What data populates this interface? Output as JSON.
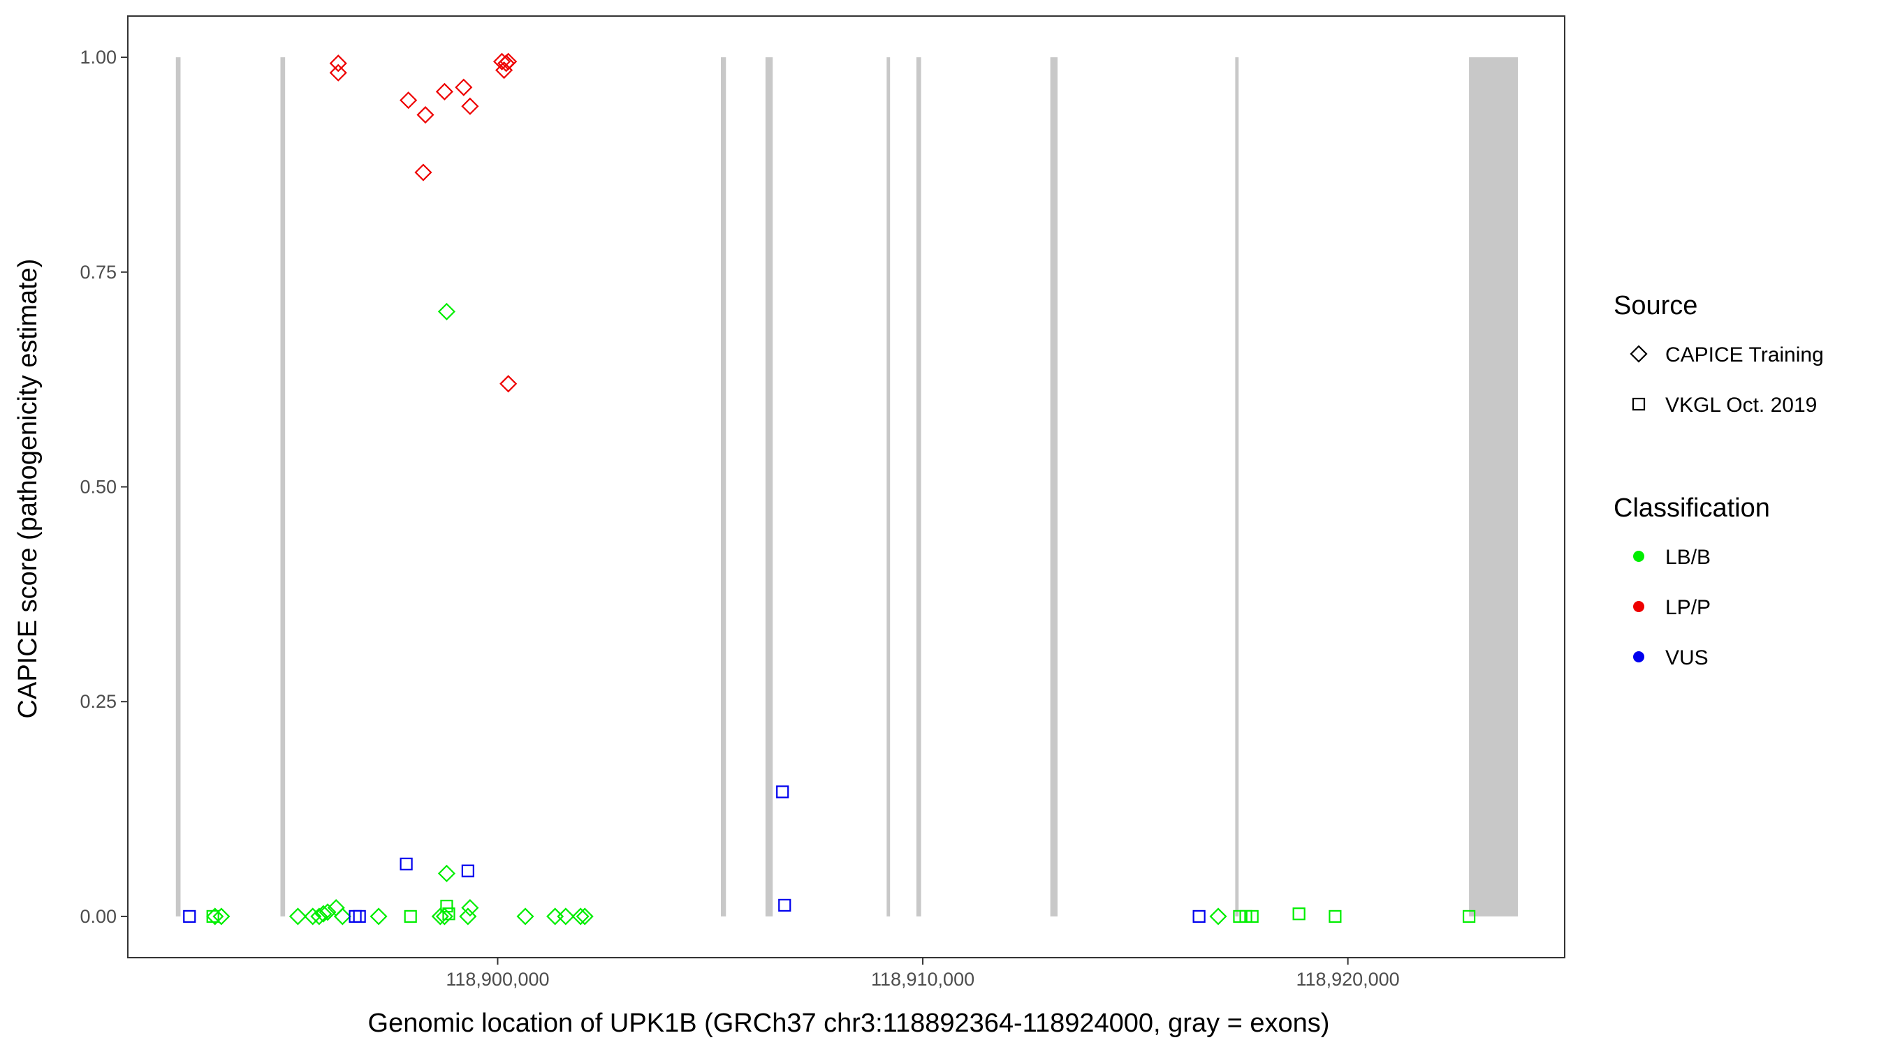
{
  "chart_data": {
    "type": "scatter",
    "title": "",
    "xlabel": "Genomic location of UPK1B (GRCh37 chr3:118892364-118924000, gray = exons)",
    "ylabel": "CAPICE score (pathogenicity estimate)",
    "xlim": [
      118891300,
      118925100
    ],
    "ylim": [
      -0.048,
      1.048
    ],
    "x_ticks": [
      118900000,
      118910000,
      118920000
    ],
    "x_tick_labels": [
      "118,900,000",
      "118,910,000",
      "118,920,000"
    ],
    "y_ticks": [
      0,
      0.25,
      0.5,
      0.75,
      1
    ],
    "y_tick_labels": [
      "0.00",
      "0.25",
      "0.50",
      "0.75",
      "1.00"
    ],
    "grid": false,
    "colors": {
      "LB/B": "#00ee00",
      "LP/P": "#ee0000",
      "VUS": "#0000ee",
      "exon": "#c8c8c8"
    },
    "exons": [
      [
        118892430,
        118892540
      ],
      [
        118894890,
        118895000
      ],
      [
        118905250,
        118905370
      ],
      [
        118906300,
        118906470
      ],
      [
        118909150,
        118909230
      ],
      [
        118909850,
        118909960
      ],
      [
        118913000,
        118913170
      ],
      [
        118917350,
        118917430
      ],
      [
        118922850,
        118924000
      ]
    ],
    "legend": [
      {
        "title": "Source",
        "items": [
          {
            "label": "CAPICE Training",
            "shape": "diamond"
          },
          {
            "label": "VKGL Oct. 2019",
            "shape": "square"
          }
        ]
      },
      {
        "title": "Classification",
        "items": [
          {
            "label": "LB/B",
            "color": "#00ee00"
          },
          {
            "label": "LP/P",
            "color": "#ee0000"
          },
          {
            "label": "VUS",
            "color": "#0000ee"
          }
        ]
      }
    ],
    "legend_position": "right",
    "points": [
      {
        "x": 118892750,
        "y": 0.0,
        "source": "VKGL Oct. 2019",
        "class": "VUS"
      },
      {
        "x": 118893300,
        "y": 0.0,
        "source": "VKGL Oct. 2019",
        "class": "LB/B"
      },
      {
        "x": 118893350,
        "y": 0.0,
        "source": "CAPICE Training",
        "class": "LB/B"
      },
      {
        "x": 118893500,
        "y": 0.0,
        "source": "CAPICE Training",
        "class": "LB/B"
      },
      {
        "x": 118895300,
        "y": 0.0,
        "source": "CAPICE Training",
        "class": "LB/B"
      },
      {
        "x": 118895650,
        "y": 0.0,
        "source": "CAPICE Training",
        "class": "LB/B"
      },
      {
        "x": 118895800,
        "y": 0.0,
        "source": "CAPICE Training",
        "class": "LB/B"
      },
      {
        "x": 118895900,
        "y": 0.003,
        "source": "CAPICE Training",
        "class": "LB/B"
      },
      {
        "x": 118896000,
        "y": 0.005,
        "source": "CAPICE Training",
        "class": "LB/B"
      },
      {
        "x": 118896200,
        "y": 0.01,
        "source": "CAPICE Training",
        "class": "LB/B"
      },
      {
        "x": 118896350,
        "y": 0.0,
        "source": "CAPICE Training",
        "class": "LB/B"
      },
      {
        "x": 118896650,
        "y": 0.0,
        "source": "VKGL Oct. 2019",
        "class": "VUS"
      },
      {
        "x": 118896750,
        "y": 0.0,
        "source": "VKGL Oct. 2019",
        "class": "VUS"
      },
      {
        "x": 118897200,
        "y": 0.0,
        "source": "CAPICE Training",
        "class": "LB/B"
      },
      {
        "x": 118897950,
        "y": 0.0,
        "source": "VKGL Oct. 2019",
        "class": "LB/B"
      },
      {
        "x": 118898650,
        "y": 0.0,
        "source": "CAPICE Training",
        "class": "LB/B"
      },
      {
        "x": 118898750,
        "y": 0.0,
        "source": "CAPICE Training",
        "class": "LB/B"
      },
      {
        "x": 118898800,
        "y": 0.012,
        "source": "VKGL Oct. 2019",
        "class": "LB/B"
      },
      {
        "x": 118898850,
        "y": 0.003,
        "source": "VKGL Oct. 2019",
        "class": "LB/B"
      },
      {
        "x": 118899300,
        "y": 0.0,
        "source": "CAPICE Training",
        "class": "LB/B"
      },
      {
        "x": 118899350,
        "y": 0.01,
        "source": "CAPICE Training",
        "class": "LB/B"
      },
      {
        "x": 118900650,
        "y": 0.0,
        "source": "CAPICE Training",
        "class": "LB/B"
      },
      {
        "x": 118901350,
        "y": 0.0,
        "source": "CAPICE Training",
        "class": "LB/B"
      },
      {
        "x": 118901600,
        "y": 0.0,
        "source": "CAPICE Training",
        "class": "LB/B"
      },
      {
        "x": 118901950,
        "y": 0.0,
        "source": "CAPICE Training",
        "class": "LB/B"
      },
      {
        "x": 118902050,
        "y": 0.0,
        "source": "CAPICE Training",
        "class": "LB/B"
      },
      {
        "x": 118897850,
        "y": 0.061,
        "source": "VKGL Oct. 2019",
        "class": "VUS"
      },
      {
        "x": 118898800,
        "y": 0.05,
        "source": "CAPICE Training",
        "class": "LB/B"
      },
      {
        "x": 118899300,
        "y": 0.053,
        "source": "VKGL Oct. 2019",
        "class": "VUS"
      },
      {
        "x": 118898800,
        "y": 0.704,
        "source": "CAPICE Training",
        "class": "LB/B"
      },
      {
        "x": 118896250,
        "y": 0.993,
        "source": "CAPICE Training",
        "class": "LP/P"
      },
      {
        "x": 118896250,
        "y": 0.982,
        "source": "CAPICE Training",
        "class": "LP/P"
      },
      {
        "x": 118897900,
        "y": 0.95,
        "source": "CAPICE Training",
        "class": "LP/P"
      },
      {
        "x": 118898300,
        "y": 0.933,
        "source": "CAPICE Training",
        "class": "LP/P"
      },
      {
        "x": 118898750,
        "y": 0.96,
        "source": "CAPICE Training",
        "class": "LP/P"
      },
      {
        "x": 118899200,
        "y": 0.965,
        "source": "CAPICE Training",
        "class": "LP/P"
      },
      {
        "x": 118899350,
        "y": 0.943,
        "source": "CAPICE Training",
        "class": "LP/P"
      },
      {
        "x": 118898250,
        "y": 0.866,
        "source": "CAPICE Training",
        "class": "LP/P"
      },
      {
        "x": 118900100,
        "y": 0.995,
        "source": "CAPICE Training",
        "class": "LP/P"
      },
      {
        "x": 118900200,
        "y": 0.993,
        "source": "CAPICE Training",
        "class": "LP/P"
      },
      {
        "x": 118900150,
        "y": 0.985,
        "source": "CAPICE Training",
        "class": "LP/P"
      },
      {
        "x": 118900250,
        "y": 0.995,
        "source": "CAPICE Training",
        "class": "LP/P"
      },
      {
        "x": 118900250,
        "y": 0.62,
        "source": "CAPICE Training",
        "class": "LP/P"
      },
      {
        "x": 118906700,
        "y": 0.145,
        "source": "VKGL Oct. 2019",
        "class": "VUS"
      },
      {
        "x": 118906750,
        "y": 0.013,
        "source": "VKGL Oct. 2019",
        "class": "VUS"
      },
      {
        "x": 118916500,
        "y": 0.0,
        "source": "VKGL Oct. 2019",
        "class": "VUS"
      },
      {
        "x": 118916950,
        "y": 0.0,
        "source": "CAPICE Training",
        "class": "LB/B"
      },
      {
        "x": 118917450,
        "y": 0.0,
        "source": "VKGL Oct. 2019",
        "class": "LB/B"
      },
      {
        "x": 118917600,
        "y": 0.0,
        "source": "VKGL Oct. 2019",
        "class": "LB/B"
      },
      {
        "x": 118917750,
        "y": 0.0,
        "source": "VKGL Oct. 2019",
        "class": "LB/B"
      },
      {
        "x": 118918850,
        "y": 0.003,
        "source": "VKGL Oct. 2019",
        "class": "LB/B"
      },
      {
        "x": 118919700,
        "y": 0.0,
        "source": "VKGL Oct. 2019",
        "class": "LB/B"
      },
      {
        "x": 118922850,
        "y": 0.0,
        "source": "VKGL Oct. 2019",
        "class": "LB/B"
      }
    ]
  }
}
